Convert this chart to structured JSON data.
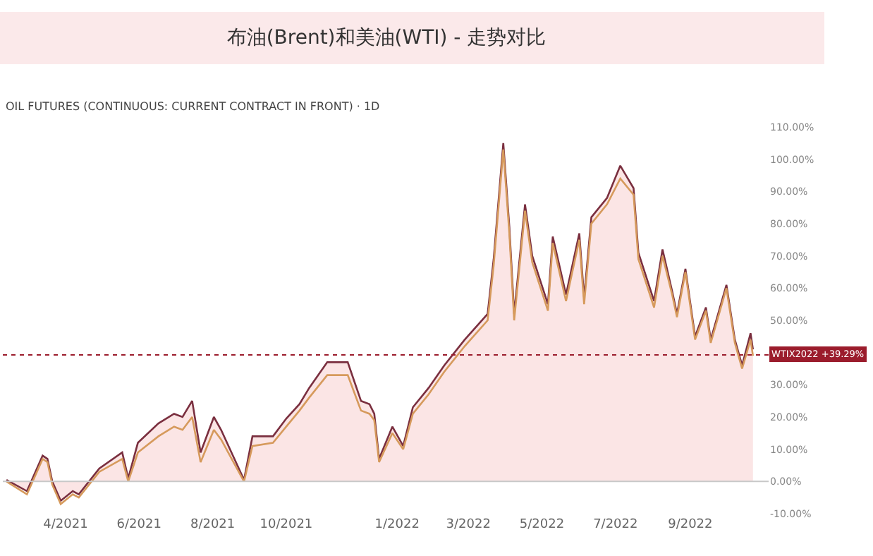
{
  "chart_data": {
    "type": "line",
    "title": "布油(Brent)和美油(WTI) - 走势对比",
    "subtitle": "OIL FUTURES (CONTINUOUS: CURRENT CONTRACT IN FRONT) · 1D",
    "x": [
      "2021-02-11",
      "2021-02-28",
      "2021-03-13",
      "2021-03-17",
      "2021-03-21",
      "2021-03-28",
      "2021-04-07",
      "2021-04-12",
      "2021-04-29",
      "2021-05-18",
      "2021-05-23",
      "2021-05-31",
      "2021-06-17",
      "2021-06-30",
      "2021-07-07",
      "2021-07-15",
      "2021-07-22",
      "2021-08-02",
      "2021-08-08",
      "2021-08-27",
      "2021-09-03",
      "2021-09-20",
      "2021-10-01",
      "2021-10-12",
      "2021-10-20",
      "2021-11-04",
      "2021-11-21",
      "2021-12-02",
      "2021-12-09",
      "2021-12-13",
      "2021-12-17",
      "2021-12-28",
      "2022-01-06",
      "2022-01-14",
      "2022-01-27",
      "2022-02-09",
      "2022-02-26",
      "2022-03-17",
      "2022-03-22",
      "2022-03-30",
      "2022-04-04",
      "2022-04-08",
      "2022-04-17",
      "2022-04-23",
      "2022-05-06",
      "2022-05-10",
      "2022-05-21",
      "2022-06-01",
      "2022-06-05",
      "2022-06-11",
      "2022-06-24",
      "2022-07-05",
      "2022-07-16",
      "2022-07-20",
      "2022-08-02",
      "2022-08-09",
      "2022-08-17",
      "2022-08-21",
      "2022-08-28",
      "2022-09-05",
      "2022-09-14",
      "2022-09-18",
      "2022-10-01",
      "2022-10-08",
      "2022-10-14",
      "2022-10-21",
      "2022-10-23"
    ],
    "series": [
      {
        "type": "area",
        "color": "#7a2f3f",
        "values": [
          0.5,
          -3,
          8,
          7,
          0,
          -6,
          -3,
          -4,
          4,
          9,
          1,
          12,
          18,
          21,
          20,
          25,
          9,
          20,
          16,
          0.5,
          14,
          14,
          19.5,
          24,
          29,
          37,
          37,
          25,
          24,
          21,
          7,
          17,
          11,
          23,
          29,
          36,
          44,
          52,
          69,
          105,
          79,
          52,
          86,
          70,
          55,
          76,
          58,
          77,
          57,
          82,
          88,
          98,
          91,
          71,
          56,
          72,
          59,
          52,
          66,
          45,
          54,
          44,
          61,
          44,
          36,
          46,
          41
        ]
      },
      {
        "color": "#d69a5c",
        "values": [
          0,
          -4,
          7,
          6,
          -1,
          -7,
          -4,
          -5,
          3,
          7,
          0,
          9,
          14,
          17,
          16,
          20,
          6,
          16,
          13,
          0,
          11,
          12,
          17,
          22,
          26,
          33,
          33,
          22,
          21,
          19,
          6,
          15,
          10,
          21,
          27,
          34,
          42,
          50,
          67,
          103,
          77,
          50,
          84,
          68,
          53,
          74,
          56,
          75,
          55,
          80,
          86,
          94,
          89,
          69,
          54,
          70,
          58,
          51,
          65,
          44,
          53,
          43,
          60,
          43,
          35,
          44,
          39
        ]
      }
    ],
    "xlim": [
      "2021-02-08",
      "2022-11-05"
    ],
    "xticks": [
      {
        "value": "2021-04-01",
        "label": "4/2021"
      },
      {
        "value": "2021-06-01",
        "label": "6/2021"
      },
      {
        "value": "2021-08-01",
        "label": "8/2021"
      },
      {
        "value": "2021-10-01",
        "label": "10/2021"
      },
      {
        "value": "2022-01-01",
        "label": "1/2022"
      },
      {
        "value": "2022-03-01",
        "label": "3/2022"
      },
      {
        "value": "2022-05-01",
        "label": "5/2022"
      },
      {
        "value": "2022-07-01",
        "label": "7/2022"
      },
      {
        "value": "2022-09-01",
        "label": "9/2022"
      }
    ],
    "ylim": [
      -10,
      110
    ],
    "yticks": [
      {
        "value": -10,
        "label": "-10.00%"
      },
      {
        "value": 0,
        "label": "0.00%"
      },
      {
        "value": 10,
        "label": "10.00%"
      },
      {
        "value": 20,
        "label": "20.00%"
      },
      {
        "value": 30,
        "label": "30.00%"
      },
      {
        "value": 50,
        "label": "50.00%"
      },
      {
        "value": 60,
        "label": "60.00%"
      },
      {
        "value": 70,
        "label": "70.00%"
      },
      {
        "value": 80,
        "label": "80.00%"
      },
      {
        "value": 90,
        "label": "90.00%"
      },
      {
        "value": 100,
        "label": "100.00%"
      },
      {
        "value": 110,
        "label": "110.00%"
      }
    ],
    "ref_lines": [
      {
        "axis": "y",
        "value": 0,
        "color": "#c8c8c8",
        "line_style": "solid"
      },
      {
        "axis": "y",
        "value": 39.29,
        "label": "WTIX2022 +39.29%",
        "color": "#9b1c2c",
        "line_style": "dotted"
      }
    ]
  }
}
